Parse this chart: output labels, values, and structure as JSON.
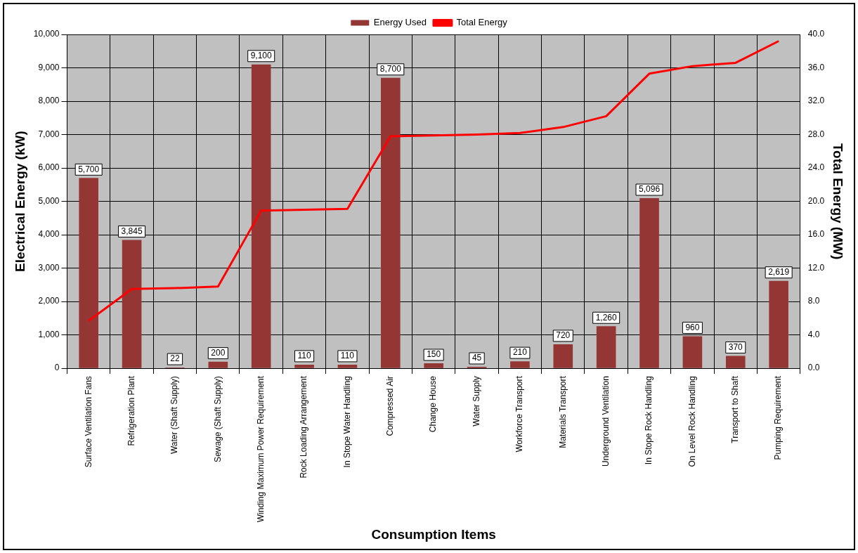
{
  "chart_data": {
    "type": "bar",
    "xlabel": "Consumption Items",
    "ylabel": "Electrical Energy (kW)",
    "y2label": "Total Energy (MW)",
    "categories": [
      "Surface Ventilation Fans",
      "Refrigeration Plant",
      "Water (Shaft Supply)",
      "Sewage (Shaft Supply)",
      "Winding Maximum Power Requirement",
      "Rock Loading Arrangement",
      "In Stope Water Handling",
      "Compressed Air",
      "Change House",
      "Water Supply",
      "Workforce Transport",
      "Materials Transport",
      "Underground Ventilation",
      "In Stope Rock Handling",
      "On Level Rock Handling",
      "Transport to Shaft",
      "Pumping Requirement"
    ],
    "series": [
      {
        "name": "Energy Used",
        "color": "#943634",
        "values": [
          5700,
          3845,
          22,
          200,
          9100,
          110,
          110,
          8700,
          150,
          45,
          210,
          720,
          1260,
          5096,
          960,
          370,
          2619
        ],
        "value_labels": [
          "5,700",
          "3,845",
          "22",
          "200",
          "9,100",
          "110",
          "110",
          "8,700",
          "150",
          "45",
          "210",
          "720",
          "1,260",
          "5,096",
          "960",
          "370",
          "2,619"
        ]
      },
      {
        "name": "Total Energy",
        "type": "line",
        "axis": "y2",
        "color": "#ff0000",
        "values": [
          5.7,
          9.5,
          9.6,
          9.8,
          18.9,
          19.0,
          19.1,
          27.8,
          27.9,
          28.0,
          28.2,
          28.9,
          30.2,
          35.3,
          36.2,
          36.6,
          39.2
        ]
      }
    ],
    "ylim": [
      0,
      10000
    ],
    "yticks": [
      {
        "value": 0,
        "label": "0"
      },
      {
        "value": 1000,
        "label": "1,000"
      },
      {
        "value": 2000,
        "label": "2,000"
      },
      {
        "value": 3000,
        "label": "3,000"
      },
      {
        "value": 4000,
        "label": "4,000"
      },
      {
        "value": 5000,
        "label": "5,000"
      },
      {
        "value": 6000,
        "label": "6,000"
      },
      {
        "value": 7000,
        "label": "7,000"
      },
      {
        "value": 8000,
        "label": "8,000"
      },
      {
        "value": 9000,
        "label": "9,000"
      },
      {
        "value": 10000,
        "label": "10,000"
      }
    ],
    "y2lim": [
      0,
      40
    ],
    "y2ticks": [
      {
        "value": 0,
        "label": "0.0"
      },
      {
        "value": 4,
        "label": "4.0"
      },
      {
        "value": 8,
        "label": "8.0"
      },
      {
        "value": 12,
        "label": "12.0"
      },
      {
        "value": 16,
        "label": "16.0"
      },
      {
        "value": 20,
        "label": "20.0"
      },
      {
        "value": 24,
        "label": "24.0"
      },
      {
        "value": 28,
        "label": "28.0"
      },
      {
        "value": 32,
        "label": "32.0"
      },
      {
        "value": 36,
        "label": "36.0"
      },
      {
        "value": 40,
        "label": "40.0"
      }
    ],
    "grid": true,
    "legend": "top",
    "marker": "none",
    "line_style": "solid"
  }
}
